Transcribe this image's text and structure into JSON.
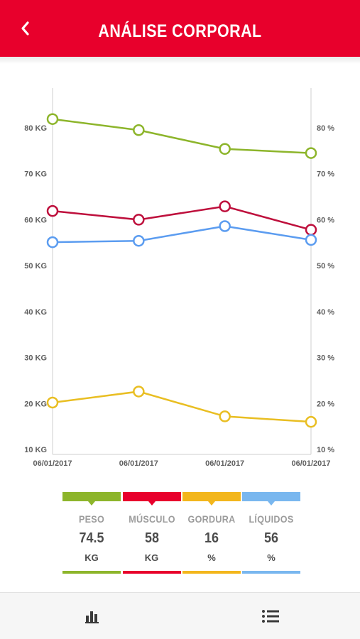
{
  "header": {
    "title": "ANÁLISE CORPORAL",
    "background": "#e8002c"
  },
  "chart_data": {
    "type": "line",
    "x": [
      "06/01/2017",
      "06/01/2017",
      "06/01/2017",
      "06/01/2017"
    ],
    "y_left": {
      "unit": "KG",
      "ticks": [
        "10 KG",
        "20 KG",
        "30 KG",
        "40 KG",
        "50 KG",
        "60 KG",
        "70 KG",
        "80 KG"
      ],
      "range": [
        10,
        80
      ]
    },
    "y_right": {
      "unit": "%",
      "ticks": [
        "10 %",
        "20 %",
        "30 %",
        "40 %",
        "50 %",
        "60 %",
        "70 %",
        "80 %"
      ],
      "range": [
        10,
        80
      ]
    },
    "grid": false,
    "series": [
      {
        "name": "PESO",
        "axis": "left",
        "color": "#8db52b",
        "values": [
          81.9,
          79.5,
          75.4,
          74.5
        ]
      },
      {
        "name": "MÚSCULO",
        "axis": "left",
        "color": "#be0f3c",
        "values": [
          61.9,
          60.0,
          62.9,
          57.8
        ]
      },
      {
        "name": "LÍQUIDOS",
        "axis": "right",
        "color": "#5b9cf0",
        "values": [
          55.1,
          55.4,
          58.6,
          55.6
        ]
      },
      {
        "name": "GORDURA",
        "axis": "right",
        "color": "#e9be22",
        "values": [
          20.2,
          22.6,
          17.2,
          16.0
        ]
      }
    ]
  },
  "summary": [
    {
      "label": "PESO",
      "value": "74.5",
      "unit": "KG",
      "color": "#8db52b"
    },
    {
      "label": "MÚSCULO",
      "value": "58",
      "unit": "KG",
      "color": "#e8002c"
    },
    {
      "label": "GORDURA",
      "value": "16",
      "unit": "%",
      "color": "#f3b61c"
    },
    {
      "label": "LÍQUIDOS",
      "value": "56",
      "unit": "%",
      "color": "#79b7ef"
    }
  ],
  "bottom_nav": {
    "left_icon": "bar-chart-icon",
    "right_icon": "list-icon"
  }
}
